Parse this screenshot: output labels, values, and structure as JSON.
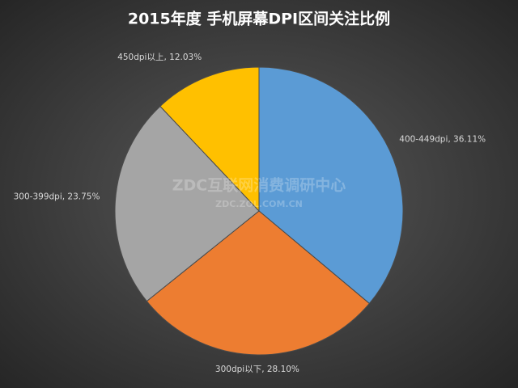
{
  "chart_data": {
    "type": "pie",
    "title": "2015年度 手机屏幕DPI区间关注比例",
    "categories": [
      "400-449dpi",
      "300dpi以下",
      "300-399dpi",
      "450dpi以上"
    ],
    "values": [
      36.11,
      28.1,
      23.75,
      12.03
    ],
    "value_labels": [
      "400-449dpi, 36.11%",
      "300dpi以下, 28.10%",
      "300-399dpi, 23.75%",
      "450dpi以上, 12.03%"
    ],
    "colors": [
      "#5b9bd5",
      "#ed7d31",
      "#a5a5a5",
      "#ffc000"
    ],
    "watermark": "ZDC互联网消费调研中心",
    "watermark_url": "ZDC.ZOL.COM.CN"
  }
}
